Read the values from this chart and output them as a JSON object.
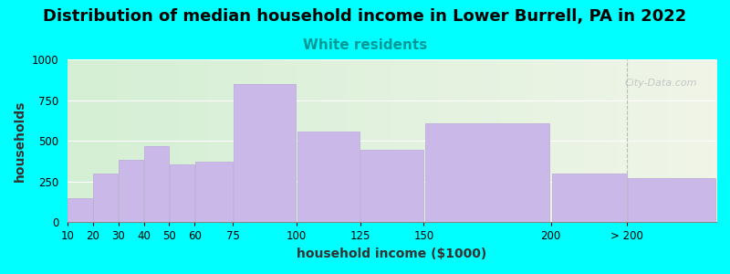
{
  "title": "Distribution of median household income in Lower Burrell, PA in 2022",
  "subtitle": "White residents",
  "xlabel": "household income ($1000)",
  "ylabel": "households",
  "background_color": "#00FFFF",
  "bar_color": "#c9b8e8",
  "bar_edge_color": "#b8a8d8",
  "watermark_text": "City-Data.com",
  "categories": [
    "10",
    "20",
    "30",
    "40",
    "50",
    "60",
    "75",
    "100",
    "125",
    "150",
    "200",
    "> 200"
  ],
  "left_edges": [
    10,
    20,
    30,
    40,
    50,
    60,
    75,
    100,
    125,
    150,
    200,
    230
  ],
  "right_edges": [
    20,
    30,
    40,
    50,
    60,
    75,
    100,
    125,
    150,
    200,
    230,
    265
  ],
  "values": [
    150,
    300,
    385,
    470,
    355,
    370,
    850,
    560,
    445,
    610,
    300,
    270
  ],
  "ylim": [
    0,
    1000
  ],
  "yticks": [
    0,
    250,
    500,
    750,
    1000
  ],
  "title_fontsize": 13,
  "subtitle_fontsize": 11,
  "subtitle_color": "#009999",
  "axis_label_fontsize": 10
}
